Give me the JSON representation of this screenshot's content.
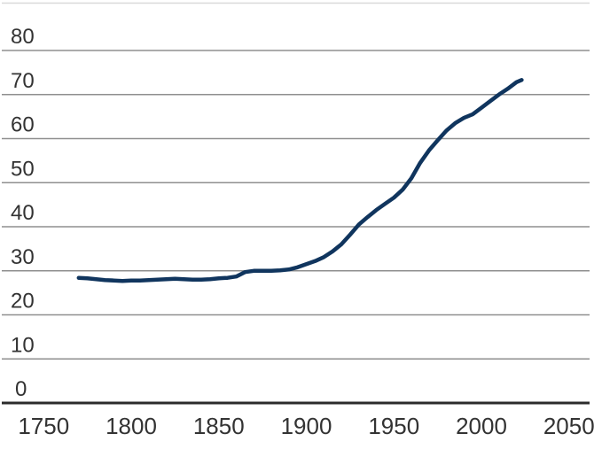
{
  "chart": {
    "background": "#ffffff",
    "line_color": "#10355e",
    "gridline_color": "#8f8f8f",
    "axis_color": "#2b2b2b",
    "top_border_color": "#d9d9d9",
    "label_color": "#333333"
  },
  "chart_data": {
    "type": "line",
    "title": "",
    "xlabel": "",
    "ylabel": "",
    "grid": "horizontal",
    "legend_position": "none",
    "x_ticks": [
      1750,
      1800,
      1850,
      1900,
      1950,
      2000,
      2050
    ],
    "x_tick_labels": [
      "1750",
      "1800",
      "1850",
      "1900",
      "1950",
      "2000",
      "2050"
    ],
    "y_ticks": [
      0,
      10,
      20,
      30,
      40,
      50,
      60,
      70,
      80
    ],
    "y_tick_labels": [
      "0",
      "10",
      "20",
      "30",
      "40",
      "50",
      "60",
      "70",
      "80"
    ],
    "ylim": [
      0,
      80
    ],
    "xlim": [
      1725,
      2064
    ],
    "series": [
      {
        "name": "series-1",
        "points": [
          [
            1770,
            28.4
          ],
          [
            1775,
            28.3
          ],
          [
            1780,
            28.1
          ],
          [
            1785,
            27.9
          ],
          [
            1790,
            27.8
          ],
          [
            1795,
            27.7
          ],
          [
            1800,
            27.8
          ],
          [
            1805,
            27.8
          ],
          [
            1810,
            27.9
          ],
          [
            1815,
            28.0
          ],
          [
            1820,
            28.1
          ],
          [
            1825,
            28.2
          ],
          [
            1830,
            28.1
          ],
          [
            1835,
            28.0
          ],
          [
            1840,
            28.0
          ],
          [
            1845,
            28.1
          ],
          [
            1850,
            28.3
          ],
          [
            1855,
            28.4
          ],
          [
            1860,
            28.7
          ],
          [
            1865,
            29.7
          ],
          [
            1870,
            30.0
          ],
          [
            1875,
            30.0
          ],
          [
            1880,
            30.0
          ],
          [
            1885,
            30.1
          ],
          [
            1890,
            30.3
          ],
          [
            1895,
            30.8
          ],
          [
            1900,
            31.5
          ],
          [
            1905,
            32.2
          ],
          [
            1910,
            33.1
          ],
          [
            1915,
            34.4
          ],
          [
            1920,
            36.0
          ],
          [
            1925,
            38.2
          ],
          [
            1930,
            40.5
          ],
          [
            1935,
            42.2
          ],
          [
            1940,
            43.8
          ],
          [
            1945,
            45.2
          ],
          [
            1950,
            46.6
          ],
          [
            1955,
            48.4
          ],
          [
            1960,
            51.0
          ],
          [
            1965,
            54.5
          ],
          [
            1970,
            57.3
          ],
          [
            1975,
            59.6
          ],
          [
            1980,
            61.8
          ],
          [
            1985,
            63.5
          ],
          [
            1990,
            64.7
          ],
          [
            1995,
            65.5
          ],
          [
            2000,
            67.0
          ],
          [
            2005,
            68.5
          ],
          [
            2010,
            70.0
          ],
          [
            2015,
            71.3
          ],
          [
            2020,
            72.8
          ],
          [
            2023,
            73.3
          ]
        ]
      }
    ]
  }
}
